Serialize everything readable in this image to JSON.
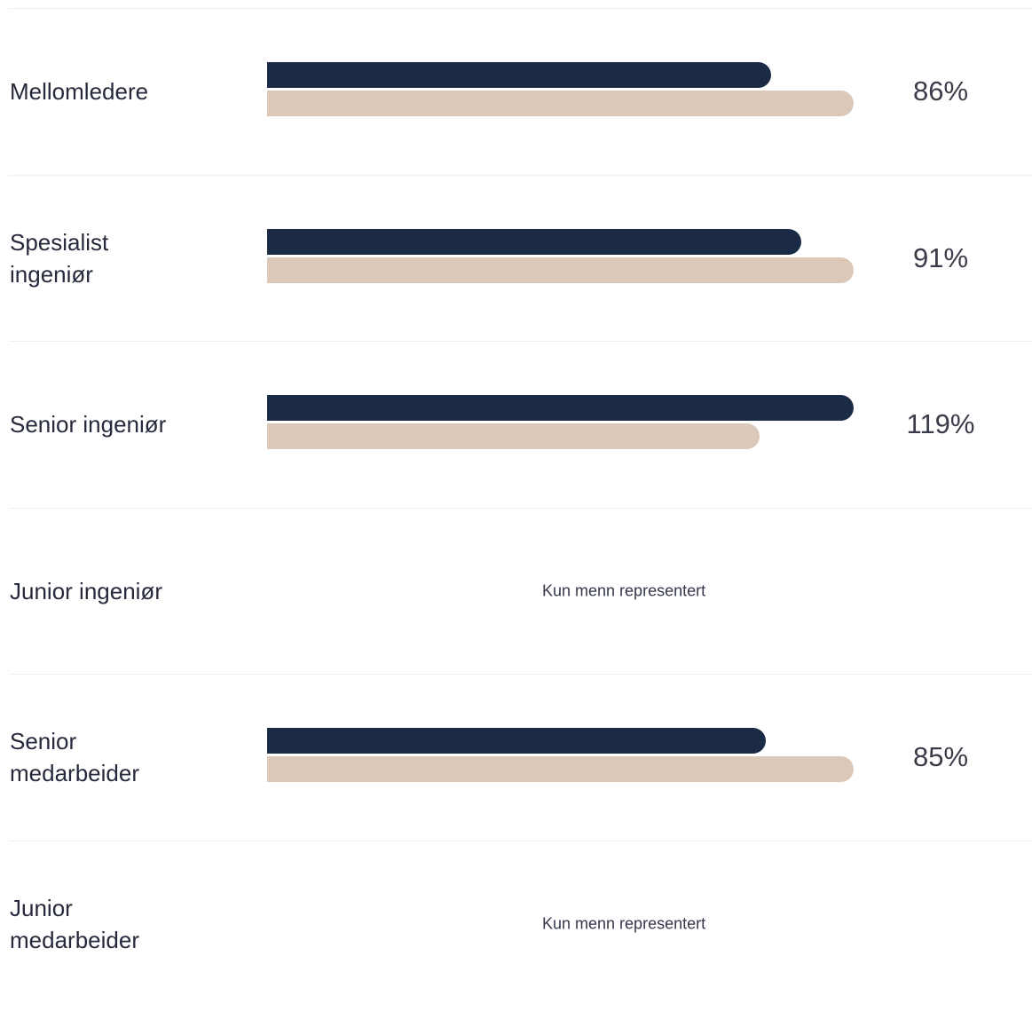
{
  "chart_data": {
    "type": "bar",
    "orientation": "horizontal",
    "categories": [
      "Mellomledere",
      "Spesialist ingeniør",
      "Senior ingeniør",
      "Junior ingeniør",
      "Senior medarbeider",
      "Junior medarbeider"
    ],
    "series": [
      {
        "values": [
          86,
          91,
          100,
          null,
          85,
          null
        ]
      },
      {
        "values": [
          100,
          100,
          84,
          null,
          100,
          null
        ]
      }
    ],
    "value_labels": [
      "86%",
      "91%",
      "119%",
      "",
      "85%",
      ""
    ],
    "notes": [
      "",
      "",
      "",
      "Kun menn representert",
      "",
      "Kun menn representert"
    ],
    "colors": {
      "series_1": "#1b2b45",
      "series_2": "#dcc8b8"
    },
    "xlim": [
      0,
      100
    ],
    "grid": false,
    "legend": "none"
  },
  "rows": [
    {
      "label": "Mellomledere",
      "value_label": "86%",
      "note": "",
      "men": 86,
      "women": 100
    },
    {
      "label": "Spesialist\ningeniør",
      "value_label": "91%",
      "note": "",
      "men": 91,
      "women": 100
    },
    {
      "label": "Senior ingeniør",
      "value_label": "119%",
      "note": "",
      "men": 100,
      "women": 84
    },
    {
      "label": "Junior ingeniør",
      "value_label": "",
      "note": "Kun menn representert",
      "men": null,
      "women": null
    },
    {
      "label": "Senior\nmedarbeider",
      "value_label": "85%",
      "note": "",
      "men": 85,
      "women": 100
    },
    {
      "label": "Junior\nmedarbeider",
      "value_label": "",
      "note": "Kun menn representert",
      "men": null,
      "women": null
    }
  ]
}
